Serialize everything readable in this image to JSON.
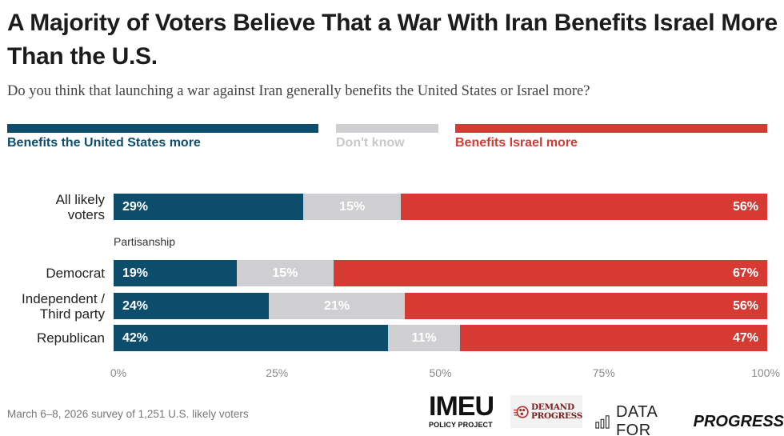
{
  "colors": {
    "us": "#0d4d6c",
    "dont_know": "#cfcfd1",
    "israel": "#d63a32",
    "dont_know_text": "#c8c8c8"
  },
  "chart_data": {
    "type": "bar",
    "orientation": "horizontal-stacked-100",
    "title": "A Majority of Voters Believe That a War With Iran Benefits Israel More Than the U.S.",
    "subtitle": "Do you think that launching a war against Iran generally benefits the United States or Israel more?",
    "legend": {
      "placement": "top",
      "entries": [
        "Benefits the United States more",
        "Don't know",
        "Benefits Israel more"
      ]
    },
    "categories": [
      "All likely voters",
      "Democrat",
      "Independent / Third party",
      "Republican"
    ],
    "category_display": [
      "All likely\nvoters",
      "Democrat",
      "Independent /\nThird party",
      "Republican"
    ],
    "groups": [
      {
        "label": "",
        "categories": [
          "All likely voters"
        ]
      },
      {
        "label": "Partisanship",
        "categories": [
          "Democrat",
          "Independent / Third party",
          "Republican"
        ]
      }
    ],
    "series": [
      {
        "name": "Benefits the United States more",
        "values": [
          29,
          19,
          24,
          42
        ]
      },
      {
        "name": "Don't know",
        "values": [
          15,
          15,
          21,
          11
        ]
      },
      {
        "name": "Benefits Israel more",
        "values": [
          56,
          67,
          56,
          47
        ]
      }
    ],
    "value_suffix": "%",
    "xlabel": "",
    "ylabel": "",
    "xlim": [
      0,
      100
    ],
    "xticks": [
      0,
      25,
      50,
      75,
      100
    ],
    "xtick_labels": [
      "0%",
      "25%",
      "50%",
      "75%",
      "100%"
    ],
    "grid": false
  },
  "footer": {
    "note": "March 6–8, 2026 survey of 1,251 U.S. likely voters",
    "logos": {
      "imeu_main": "IMEU",
      "imeu_sub": "POLICY PROJECT",
      "demand_progress_line1": "DEMAND",
      "demand_progress_line2": "PROGRESS",
      "dfp_part1": "DATA FOR",
      "dfp_part2": "PROGRESS"
    }
  }
}
